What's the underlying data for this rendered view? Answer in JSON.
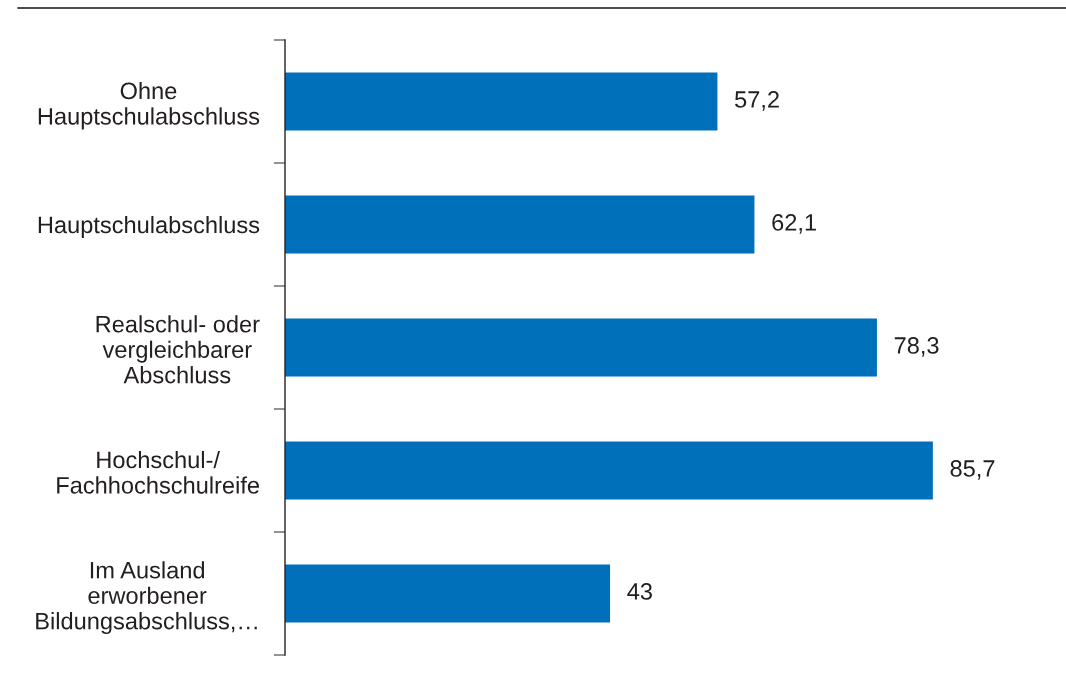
{
  "chart_data": {
    "type": "bar",
    "orientation": "horizontal",
    "categories": [
      "Ohne\nHauptschulabschluss",
      "Hauptschulabschluss",
      "Realschul- oder\nvergleichbarer\nAbschluss",
      "Hochschul-/\nFachhochschulreife",
      "Im Ausland\nerworbener\nBildungsabschluss,…"
    ],
    "values": [
      57.2,
      62.1,
      78.3,
      85.7,
      43
    ],
    "value_labels": [
      "57,2",
      "62,1",
      "78,3",
      "85,7",
      "43"
    ],
    "color": "#0070ba",
    "tick_labels": "y"
  }
}
